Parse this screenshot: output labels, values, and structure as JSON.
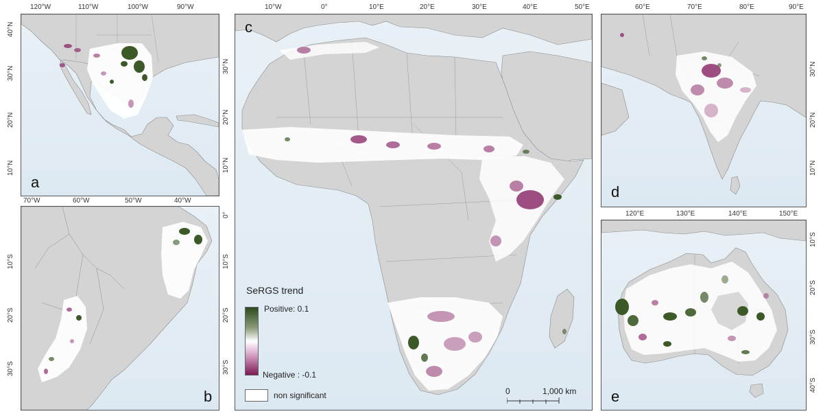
{
  "panels": {
    "a": {
      "label": "a",
      "lon_ticks": [
        "120°W",
        "110°W",
        "100°W",
        "90°W"
      ],
      "lat_ticks": [
        "40°N",
        "30°N",
        "20°N",
        "10°N"
      ]
    },
    "b": {
      "label": "b",
      "lon_ticks": [
        "70°W",
        "60°W",
        "50°W",
        "40°W"
      ],
      "lat_ticks": [
        "10°S",
        "20°S",
        "30°S"
      ]
    },
    "c": {
      "label": "c",
      "lon_ticks": [
        "10°W",
        "0°",
        "10°E",
        "20°E",
        "30°E",
        "40°E",
        "50°E"
      ],
      "lat_ticks": [
        "30°N",
        "20°N",
        "10°N",
        "0°",
        "10°S",
        "20°S",
        "30°S"
      ]
    },
    "d": {
      "label": "d",
      "lon_ticks": [
        "60°E",
        "70°E",
        "80°E",
        "90°E"
      ],
      "lat_ticks": [
        "30°N",
        "20°N",
        "10°N"
      ]
    },
    "e": {
      "label": "e",
      "lon_ticks": [
        "120°E",
        "130°E",
        "140°E",
        "150°E"
      ],
      "lat_ticks": [
        "10°S",
        "20°S",
        "30°S",
        "40°S"
      ]
    }
  },
  "legend": {
    "title": "SeRGS trend",
    "positive_label": "Positive: 0.1",
    "negative_label": "Negative : -0.1",
    "nonsig_label": "non significant",
    "positive_color": "#2d4a1e",
    "mid_color": "#ffffff",
    "negative_color": "#7a1a55"
  },
  "scalebar": {
    "zero": "0",
    "distance": "1,000 km"
  },
  "colors": {
    "land": "#d4d4d4",
    "sea": "#e4eef5",
    "border": "#8a8a8a",
    "positive": "#3b5a28",
    "negative": "#8e2f6e",
    "neg_light": "#d8a6c8",
    "nonsig": "#ffffff"
  }
}
